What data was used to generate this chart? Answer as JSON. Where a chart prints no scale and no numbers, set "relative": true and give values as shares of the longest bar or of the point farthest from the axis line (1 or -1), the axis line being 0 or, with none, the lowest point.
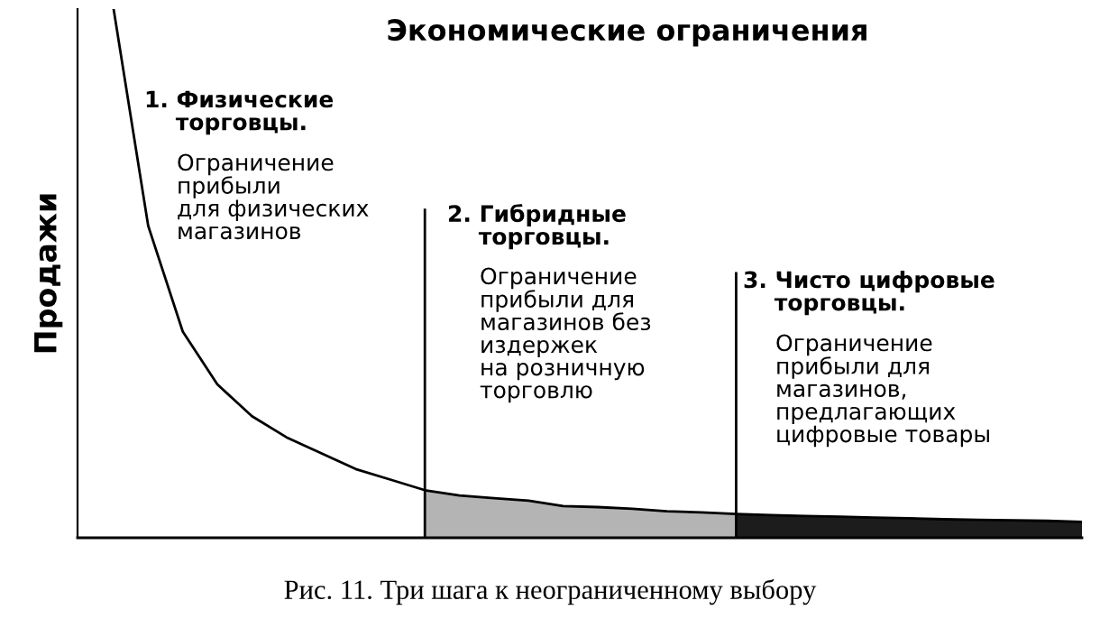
{
  "chart_data": {
    "type": "area",
    "relative": true,
    "title": "Экономические ограничения",
    "ylabel": "Продажи",
    "categories": [
      null,
      null,
      null,
      null,
      null,
      null,
      null,
      null,
      null,
      null,
      null,
      null,
      null,
      null,
      null,
      null,
      null,
      null,
      null,
      null,
      null,
      null,
      null,
      null,
      null,
      null,
      null,
      null,
      null
    ],
    "series": [
      {
        "type": "line",
        "color": "#000000",
        "values": [
          1.0,
          0.59,
          0.39,
          0.29,
          0.23,
          0.19,
          0.16,
          0.13,
          0.11,
          0.09,
          0.08,
          0.075,
          0.07,
          0.06,
          0.058,
          0.055,
          0.05,
          0.048,
          0.045,
          0.043,
          0.041,
          0.04,
          0.038,
          0.037,
          0.035,
          0.034,
          0.033,
          0.032,
          0.03
        ]
      },
      {
        "color": "#b4b4b4",
        "values": [
          null,
          null,
          null,
          null,
          null,
          null,
          null,
          null,
          null,
          0.09,
          0.08,
          0.075,
          0.07,
          0.06,
          0.058,
          0.055,
          0.05,
          0.048,
          0.045,
          null,
          null,
          null,
          null,
          null,
          null,
          null,
          null,
          null,
          null
        ]
      },
      {
        "color": "#1c1c1c",
        "values": [
          null,
          null,
          null,
          null,
          null,
          null,
          null,
          null,
          null,
          null,
          null,
          null,
          null,
          null,
          null,
          null,
          null,
          null,
          0.045,
          0.043,
          0.041,
          0.04,
          0.038,
          0.037,
          0.035,
          0.034,
          0.033,
          0.032,
          0.03
        ]
      }
    ],
    "annotations": [
      "1. Физические\n    торговцы.",
      "Ограничение\nприбыли\nдля физических\nмагазинов",
      "2. Гибридные\n    торговцы.",
      "Ограничение\nприбыли для\nмагазинов без\nиздержек\nна розничную\nторговлю",
      "3. Чисто цифровые\n    торговцы.",
      "Ограничение\nприбыли для\nмагазинов,\nпредлагающих\nцифровые товары",
      "Рис. 11. Три шага к неограниченному выбору"
    ]
  }
}
